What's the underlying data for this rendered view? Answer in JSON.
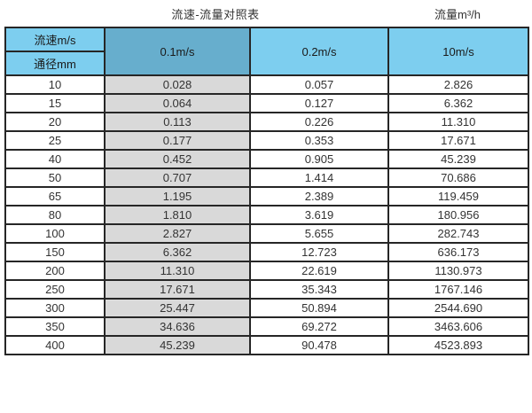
{
  "titles": {
    "left": "流速-流量对照表",
    "right": "流量m³/h"
  },
  "table": {
    "corner_top": "流速m/s",
    "corner_bottom": "通径mm",
    "velocity_columns": [
      "0.1m/s",
      "0.2m/s",
      "10m/s"
    ],
    "rows": [
      {
        "dn": "10",
        "values": [
          "0.028",
          "0.057",
          "2.826"
        ]
      },
      {
        "dn": "15",
        "values": [
          "0.064",
          "0.127",
          "6.362"
        ]
      },
      {
        "dn": "20",
        "values": [
          "0.113",
          "0.226",
          "11.310"
        ]
      },
      {
        "dn": "25",
        "values": [
          "0.177",
          "0.353",
          "17.671"
        ]
      },
      {
        "dn": "40",
        "values": [
          "0.452",
          "0.905",
          "45.239"
        ]
      },
      {
        "dn": "50",
        "values": [
          "0.707",
          "1.414",
          "70.686"
        ]
      },
      {
        "dn": "65",
        "values": [
          "1.195",
          "2.389",
          "119.459"
        ]
      },
      {
        "dn": "80",
        "values": [
          "1.810",
          "3.619",
          "180.956"
        ]
      },
      {
        "dn": "100",
        "values": [
          "2.827",
          "5.655",
          "282.743"
        ]
      },
      {
        "dn": "150",
        "values": [
          "6.362",
          "12.723",
          "636.173"
        ]
      },
      {
        "dn": "200",
        "values": [
          "11.310",
          "22.619",
          "1130.973"
        ]
      },
      {
        "dn": "250",
        "values": [
          "17.671",
          "35.343",
          "1767.146"
        ]
      },
      {
        "dn": "300",
        "values": [
          "25.447",
          "50.894",
          "2544.690"
        ]
      },
      {
        "dn": "350",
        "values": [
          "34.636",
          "69.272",
          "3463.606"
        ]
      },
      {
        "dn": "400",
        "values": [
          "45.239",
          "90.478",
          "4523.893"
        ]
      }
    ]
  },
  "colors": {
    "header_light_blue": "#7dceef",
    "header_dark_blue": "#67aecd",
    "shaded_column_gray": "#d9d9d9",
    "border": "#262626",
    "text": "#333333"
  },
  "chart_data": {
    "type": "table",
    "title": "流速-流量对照表",
    "units_label": "流量m³/h",
    "row_axis_label": "通径mm",
    "col_axis_label": "流速m/s",
    "columns": [
      "0.1m/s",
      "0.2m/s",
      "10m/s"
    ],
    "diameters_mm": [
      10,
      15,
      20,
      25,
      40,
      50,
      65,
      80,
      100,
      150,
      200,
      250,
      300,
      350,
      400
    ],
    "flow_values_m3h": [
      [
        0.028,
        0.057,
        2.826
      ],
      [
        0.064,
        0.127,
        6.362
      ],
      [
        0.113,
        0.226,
        11.31
      ],
      [
        0.177,
        0.353,
        17.671
      ],
      [
        0.452,
        0.905,
        45.239
      ],
      [
        0.707,
        1.414,
        70.686
      ],
      [
        1.195,
        2.389,
        119.459
      ],
      [
        1.81,
        3.619,
        180.956
      ],
      [
        2.827,
        5.655,
        282.743
      ],
      [
        6.362,
        12.723,
        636.173
      ],
      [
        11.31,
        22.619,
        1130.973
      ],
      [
        17.671,
        35.343,
        1767.146
      ],
      [
        25.447,
        50.894,
        2544.69
      ],
      [
        34.636,
        69.272,
        3463.606
      ],
      [
        45.239,
        90.478,
        4523.893
      ]
    ]
  }
}
